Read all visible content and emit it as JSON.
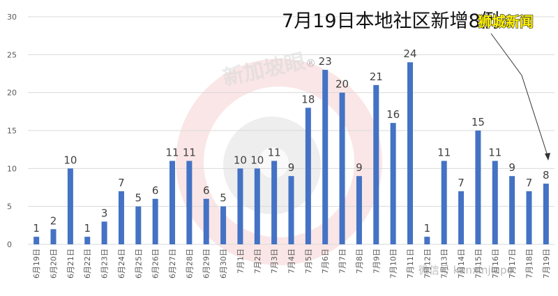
{
  "chart_data": {
    "type": "bar",
    "title": "7月19日本地社区新增8例",
    "source_label": "狮城新闻",
    "categories": [
      "6月19日",
      "6月20日",
      "6月21日",
      "6月22日",
      "6月23日",
      "6月24日",
      "6月25日",
      "6月26日",
      "6月27日",
      "6月28日",
      "6月29日",
      "6月30日",
      "7月1日",
      "7月2日",
      "7月3日",
      "7月4日",
      "7月5日",
      "7月6日",
      "7月7日",
      "7月8日",
      "7月9日",
      "7月10日",
      "7月11日",
      "7月12日",
      "7月13日",
      "7月14日",
      "7月15日",
      "7月16日",
      "7月17日",
      "7月18日",
      "7月19日"
    ],
    "values": [
      1,
      2,
      10,
      1,
      3,
      7,
      5,
      6,
      11,
      11,
      6,
      5,
      10,
      10,
      11,
      9,
      18,
      23,
      20,
      9,
      21,
      16,
      24,
      1,
      11,
      7,
      15,
      11,
      9,
      7,
      8
    ],
    "ylim": [
      0,
      30
    ],
    "yticks": [
      "0",
      "5",
      "10",
      "15",
      "20",
      "25",
      "30"
    ],
    "bar_color": "#4472c4",
    "grid": true,
    "data_labels": true
  },
  "watermarks": {
    "logo_text": "新加坡眼",
    "registered_mark": "®",
    "wechat_text": "微信号 kanxinjiapo"
  }
}
